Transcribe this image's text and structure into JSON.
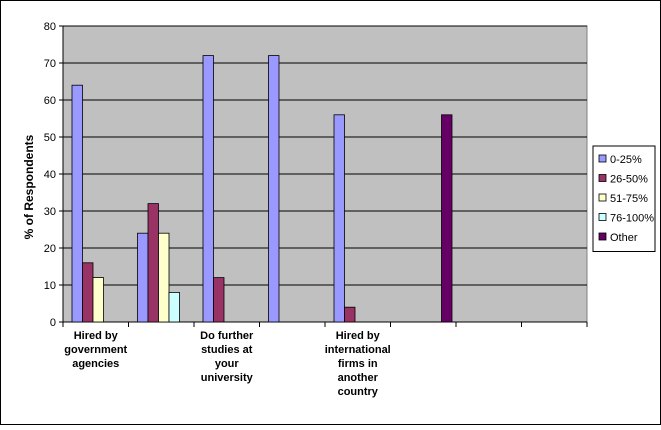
{
  "chart_data": {
    "type": "bar",
    "title": "",
    "xlabel": "",
    "ylabel": "% of Respondents",
    "ylim": [
      0,
      80
    ],
    "yticks": [
      0,
      10,
      20,
      30,
      40,
      50,
      60,
      70,
      80
    ],
    "grid": true,
    "legend_position": "right",
    "categories": [
      [
        "Hired by",
        "government",
        "agencies"
      ],
      [],
      [
        "Do further",
        "studies at",
        "your",
        "university"
      ],
      [],
      [
        "Hired by",
        "international",
        "firms in",
        "another",
        "country"
      ],
      [],
      [],
      []
    ],
    "series": [
      {
        "name": "0-25%",
        "color": "#9999ff",
        "values": [
          64,
          24,
          72,
          72,
          56,
          0,
          0,
          0
        ]
      },
      {
        "name": "26-50%",
        "color": "#993366",
        "values": [
          16,
          32,
          12,
          0,
          4,
          0,
          0,
          0
        ]
      },
      {
        "name": "51-75%",
        "color": "#ffffcc",
        "values": [
          12,
          24,
          0,
          0,
          0,
          0,
          0,
          0
        ]
      },
      {
        "name": "76-100%",
        "color": "#ccffff",
        "values": [
          0,
          8,
          0,
          0,
          0,
          0,
          0,
          0
        ]
      },
      {
        "name": "Other",
        "color": "#660066",
        "values": [
          0,
          0,
          0,
          0,
          0,
          56,
          0,
          0
        ]
      }
    ],
    "plot_bg": "#c0c0c0"
  }
}
